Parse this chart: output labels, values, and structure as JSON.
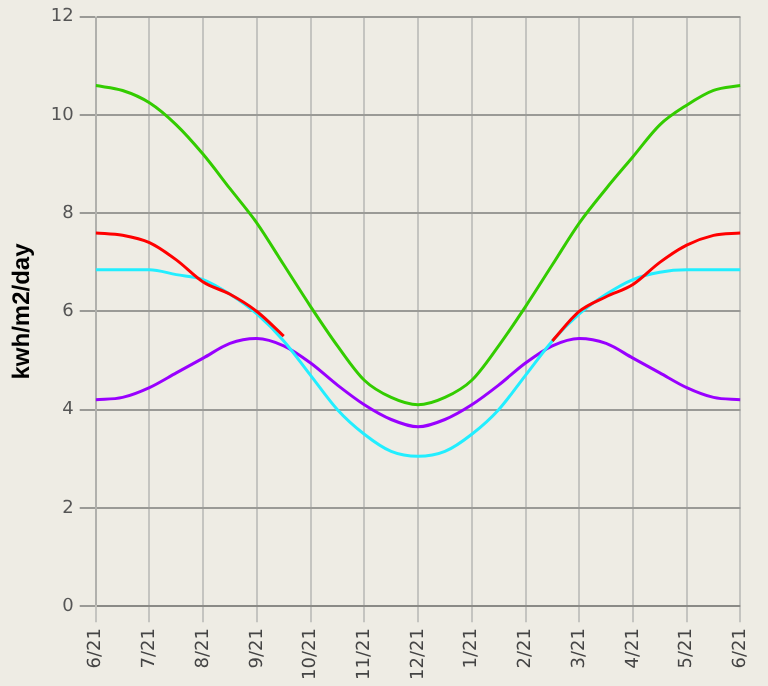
{
  "chart_data": {
    "type": "line",
    "ylabel": "kwh/m2/day",
    "categories": [
      "6/21",
      null,
      "7/21",
      null,
      "8/21",
      null,
      "9/21",
      null,
      "10/21",
      null,
      "11/21",
      null,
      "12/21",
      null,
      "1/21",
      null,
      "2/21",
      null,
      "3/21",
      null,
      "4/21",
      null,
      "5/21",
      null,
      "6/21"
    ],
    "ylim": [
      0,
      12
    ],
    "yticks": [
      0,
      2,
      4,
      6,
      8,
      10,
      12
    ],
    "grid": true,
    "marker": "none",
    "line_style": "solid",
    "series": [
      {
        "color": "#33cc00",
        "values": [
          10.6,
          10.5,
          10.25,
          9.8,
          9.2,
          8.5,
          7.8,
          6.95,
          6.1,
          5.3,
          4.6,
          4.25,
          4.1,
          4.25,
          4.6,
          5.3,
          6.1,
          6.95,
          7.8,
          8.5,
          9.15,
          9.8,
          10.2,
          10.5,
          10.6
        ]
      },
      {
        "color": "#ff0000",
        "values": [
          7.6,
          7.55,
          7.4,
          7.05,
          6.6,
          6.35,
          6.0,
          5.5,
          null,
          null,
          null,
          null,
          null,
          null,
          null,
          null,
          null,
          5.4,
          6.0,
          6.3,
          6.55,
          7.0,
          7.35,
          7.55,
          7.6
        ]
      },
      {
        "color": "#22eeff",
        "values": [
          6.85,
          6.85,
          6.85,
          6.75,
          6.65,
          6.35,
          5.95,
          5.4,
          4.7,
          4.0,
          3.5,
          3.15,
          3.05,
          3.15,
          3.5,
          4.0,
          4.7,
          5.4,
          5.95,
          6.35,
          6.65,
          6.8,
          6.85,
          6.85,
          6.85
        ]
      },
      {
        "color": "#9900ff",
        "values": [
          4.2,
          4.25,
          4.45,
          4.75,
          5.05,
          5.35,
          5.45,
          5.3,
          4.95,
          4.5,
          4.1,
          3.8,
          3.65,
          3.8,
          4.1,
          4.5,
          4.95,
          5.3,
          5.45,
          5.35,
          5.05,
          4.75,
          4.45,
          4.25,
          4.2
        ]
      }
    ]
  }
}
